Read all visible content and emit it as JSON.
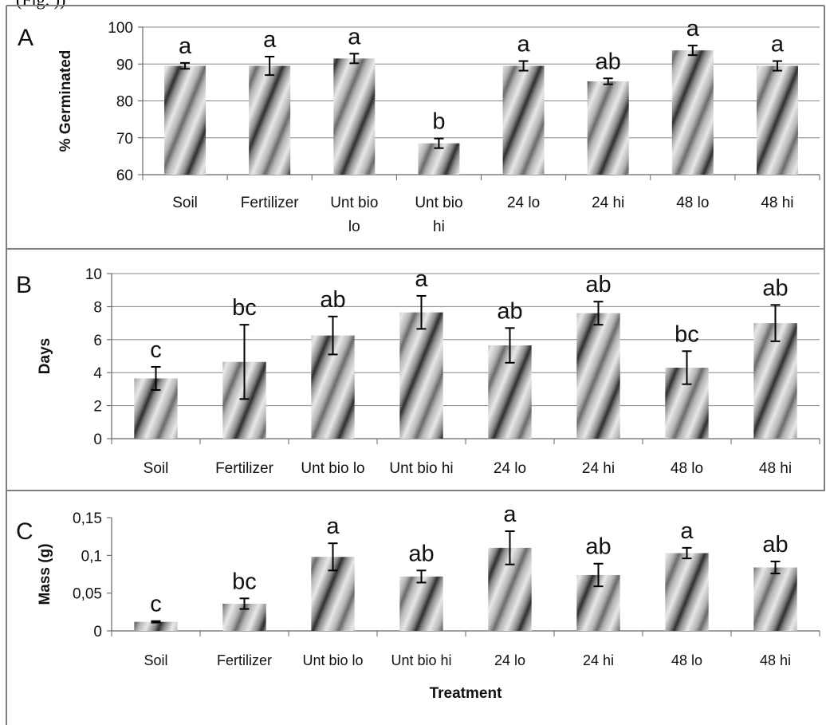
{
  "header_fragment": "(Fig. ))",
  "colors": {
    "frame": "#7f7f7f",
    "grid": "#868686",
    "bar_light": "#e6e6e6",
    "bar_dark": "#2e2e2e",
    "text": "#111111"
  },
  "chart_data": [
    {
      "type": "bar",
      "panel_letter": "A",
      "ylabel": "% Germinated",
      "xlabel": "",
      "ylim": [
        60,
        100
      ],
      "yticks": [
        60,
        70,
        80,
        90,
        100
      ],
      "tick_labels": [
        "60",
        "70",
        "80",
        "90",
        "100"
      ],
      "grid": true,
      "categories": [
        [
          "Soil"
        ],
        [
          "Fertilizer"
        ],
        [
          "Unt bio",
          "lo"
        ],
        [
          "Unt bio",
          "hi"
        ],
        [
          "24 lo"
        ],
        [
          "24 hi"
        ],
        [
          "48 lo"
        ],
        [
          "48 hi"
        ]
      ],
      "values": [
        89.5,
        89.5,
        91.5,
        68.5,
        89.5,
        85.3,
        93.7,
        89.5
      ],
      "errors": [
        0.8,
        2.5,
        1.3,
        1.3,
        1.3,
        0.8,
        1.3,
        1.3
      ],
      "letters": [
        "a",
        "a",
        "a",
        "b",
        "a",
        "ab",
        "a",
        "a"
      ]
    },
    {
      "type": "bar",
      "panel_letter": "B",
      "ylabel": "Days",
      "xlabel": "",
      "ylim": [
        0,
        10
      ],
      "yticks": [
        0,
        2,
        4,
        6,
        8,
        10
      ],
      "tick_labels": [
        "0",
        "2",
        "4",
        "6",
        "8",
        "10"
      ],
      "grid": true,
      "categories": [
        [
          "Soil"
        ],
        [
          "Fertilizer"
        ],
        [
          "Unt bio lo"
        ],
        [
          "Unt bio hi"
        ],
        [
          "24 lo"
        ],
        [
          "24 hi"
        ],
        [
          "48 lo"
        ],
        [
          "48 hi"
        ]
      ],
      "values": [
        3.65,
        4.65,
        6.25,
        7.65,
        5.65,
        7.6,
        4.3,
        7.0
      ],
      "errors": [
        0.7,
        2.25,
        1.15,
        1.0,
        1.05,
        0.7,
        1.0,
        1.1
      ],
      "letters": [
        "c",
        "bc",
        "ab",
        "a",
        "ab",
        "ab",
        "bc",
        "ab"
      ]
    },
    {
      "type": "bar",
      "panel_letter": "C",
      "ylabel": "Mass (g)",
      "xlabel": "Treatment",
      "ylim": [
        0,
        0.15
      ],
      "yticks": [
        0,
        0.05,
        0.1,
        0.15
      ],
      "tick_labels": [
        "0",
        "0,05",
        "0,1",
        "0,15"
      ],
      "grid": false,
      "categories": [
        [
          "Soil"
        ],
        [
          "Fertilizer"
        ],
        [
          "Unt bio lo"
        ],
        [
          "Unt bio hi"
        ],
        [
          "24 lo"
        ],
        [
          "24 hi"
        ],
        [
          "48 lo"
        ],
        [
          "48 hi"
        ]
      ],
      "values": [
        0.012,
        0.036,
        0.098,
        0.072,
        0.11,
        0.074,
        0.103,
        0.084
      ],
      "errors": [
        0.001,
        0.007,
        0.018,
        0.008,
        0.022,
        0.015,
        0.007,
        0.008
      ],
      "letters": [
        "c",
        "bc",
        "a",
        "ab",
        "a",
        "ab",
        "a",
        "ab"
      ]
    }
  ]
}
